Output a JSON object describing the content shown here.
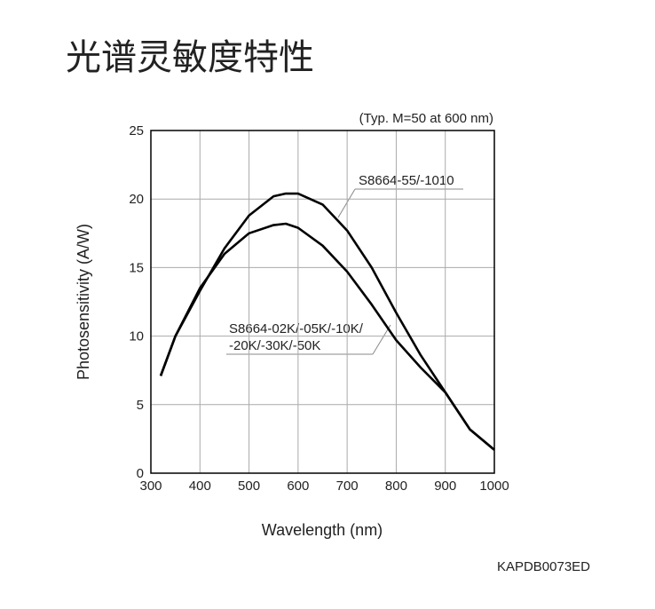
{
  "chart_data": {
    "type": "line",
    "title": "光谱灵敏度特性",
    "subtitle": "(Typ. M=50 at 600 nm)",
    "x_label": "Wavelength (nm)",
    "y_label": "Photosensitivity (A/W)",
    "footnote": "KAPDB0073ED",
    "x": [
      320,
      350,
      400,
      450,
      500,
      550,
      575,
      600,
      650,
      700,
      750,
      800,
      850,
      900,
      950,
      1000
    ],
    "series": [
      {
        "name": "S8664-55/-1010",
        "color": "#000000",
        "values": [
          7.1,
          10,
          13.3,
          16.4,
          18.8,
          20.2,
          20.4,
          20.4,
          19.6,
          17.7,
          15,
          11.7,
          8.6,
          5.9,
          3.2,
          1.7
        ]
      },
      {
        "name": [
          "S8664-02K/-05K/-10K/",
          "-20K/-30K/-50K"
        ],
        "color": "#000000",
        "values": [
          7.1,
          10,
          13.5,
          16,
          17.5,
          18.1,
          18.2,
          17.9,
          16.6,
          14.7,
          12.3,
          9.7,
          7.7,
          5.9,
          3.2,
          1.7
        ]
      }
    ],
    "xlim": [
      300,
      1000
    ],
    "ylim": [
      0,
      25
    ],
    "xticks": [
      300,
      400,
      500,
      600,
      700,
      800,
      900,
      1000
    ],
    "yticks": [
      0,
      5,
      10,
      15,
      20,
      25
    ],
    "grid": true
  }
}
